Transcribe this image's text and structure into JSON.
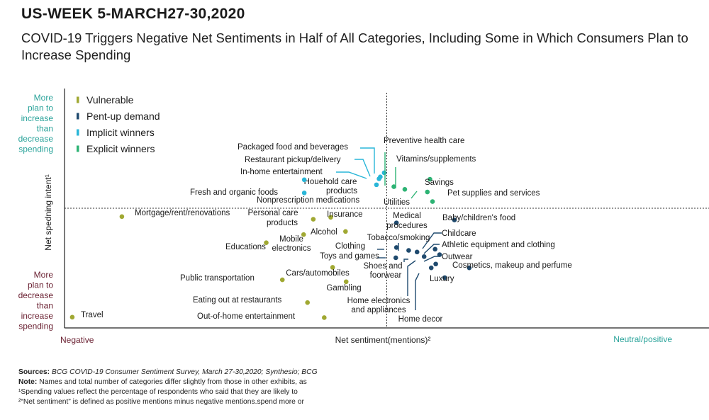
{
  "header": {
    "title": "US-WEEK 5-MARCH27-30,2020",
    "subtitle": "COVID-19 Triggers Negative Net Sentiments in Half of All Categories, Including Some in Which Consumers Plan to Increase Spending"
  },
  "chart_data": {
    "type": "scatter",
    "title": "COVID-19 Triggers Negative Net Sentiments in Half of All Categories, Including Some in Which Consumers Plan to Increase Spending",
    "xlabel": "Net sentiment(mentions)²",
    "ylabel": "Net spedning intent¹",
    "x_axis_ends": {
      "left": "Negative",
      "right": "Neutral/positive"
    },
    "y_axis_ends": {
      "top": [
        "More",
        "plan to",
        "increase",
        "than",
        "decrease",
        "spending"
      ],
      "bottom": [
        "More",
        "plan to",
        "decrease",
        "than",
        "increase",
        "spending"
      ]
    },
    "xlim": [
      0,
      100
    ],
    "ylim": [
      0,
      100
    ],
    "x_divider": 50,
    "y_divider": 50,
    "legend_position": "top-left",
    "series": [
      {
        "name": "Vulnerable",
        "color": "#a0a832",
        "points": [
          {
            "label": "Mortgage/rent/renovations",
            "x": 8.9,
            "y": 46.5
          },
          {
            "label": "Personal care products",
            "x": 38.6,
            "y": 45.4
          },
          {
            "label": "Insurance",
            "x": 41.3,
            "y": 46.2
          },
          {
            "label": "Alcohol",
            "x": 43.6,
            "y": 40.3
          },
          {
            "label": "Mobile electronics",
            "x": 37.1,
            "y": 39.0
          },
          {
            "label": "Educations",
            "x": 31.3,
            "y": 35.6
          },
          {
            "label": "Cars/automobiles",
            "x": 41.6,
            "y": 25.3
          },
          {
            "label": "Public transportation",
            "x": 33.8,
            "y": 20.1
          },
          {
            "label": "Gambling",
            "x": 43.7,
            "y": 19.3
          },
          {
            "label": "Eating out at restaurants",
            "x": 37.7,
            "y": 10.6
          },
          {
            "label": "Out-of-home entertainment",
            "x": 40.3,
            "y": 4.3
          },
          {
            "label": "Travel",
            "x": 1.2,
            "y": 4.5
          }
        ]
      },
      {
        "name": "Pent-up demand",
        "color": "#1f4a6e",
        "points": [
          {
            "label": "Medical procedures",
            "x": 51.5,
            "y": 43.9
          },
          {
            "label": "Baby/children's food",
            "x": 60.5,
            "y": 45.1
          },
          {
            "label": "Childcare",
            "x": 57.5,
            "y": 32.9
          },
          {
            "label": "Athletic equipment and clothing",
            "x": 58.2,
            "y": 30.6
          },
          {
            "label": "Outwear",
            "x": 57.6,
            "y": 26.7
          },
          {
            "label": "Cosmetics, makeup and perfume",
            "x": 62.8,
            "y": 25.1
          },
          {
            "label": "Luxury",
            "x": 59.0,
            "y": 21.0
          },
          {
            "label": "Home decor",
            "x": 56.9,
            "y": 25.1
          },
          {
            "label": "Home electronics and appliances",
            "x": 55.8,
            "y": 29.8
          },
          {
            "label": "Shoes and foorwear",
            "x": 54.7,
            "y": 31.7
          },
          {
            "label": "Tobacco/smoking",
            "x": 53.4,
            "y": 32.4
          },
          {
            "label": "Clothing",
            "x": 51.5,
            "y": 33.6
          },
          {
            "label": "Toys and games",
            "x": 51.4,
            "y": 29.3
          }
        ]
      },
      {
        "name": "Implicit winners",
        "color": "#29b6d8",
        "points": [
          {
            "label": "Packaged food and beverages",
            "x": 49.6,
            "y": 64.8
          },
          {
            "label": "Restaurant pickup/delivery",
            "x": 49.0,
            "y": 63.1
          },
          {
            "label": "In-home entertainment",
            "x": 48.8,
            "y": 62.3
          },
          {
            "label": "Houehold care products",
            "x": 48.4,
            "y": 59.8
          },
          {
            "label": "Fresh and organic foods",
            "x": 37.2,
            "y": 61.9
          },
          {
            "label": "Nonprescription medications",
            "x": 37.2,
            "y": 56.4
          }
        ]
      },
      {
        "name": "Explicit winners",
        "color": "#2db374",
        "points": [
          {
            "label": "Preventive health care",
            "x": 51.1,
            "y": 59.0
          },
          {
            "label": "Vitamins/supplements",
            "x": 52.8,
            "y": 57.9
          },
          {
            "label": "Savings",
            "x": 56.7,
            "y": 62.1
          },
          {
            "label": "Pet supplies and services",
            "x": 56.3,
            "y": 56.8
          },
          {
            "label": "Utilities",
            "x": 57.1,
            "y": 52.8
          }
        ]
      }
    ]
  },
  "sources": {
    "sources_label": "Sources:",
    "sources_text": "BCG COVID-19 Consumer Sentiment Survey, March 27-30,2020; Synthesio; BCG",
    "note_label": "Note:",
    "note_text": "Names and total number of categories differ slightly from those in other exhibits, as",
    "footnote1": "¹Spending values reflect the percentage of respondents who said that they are likely to",
    "footnote2": "²“Net sentiment” is defined as positive mentions minus negative mentions.spend more or"
  }
}
